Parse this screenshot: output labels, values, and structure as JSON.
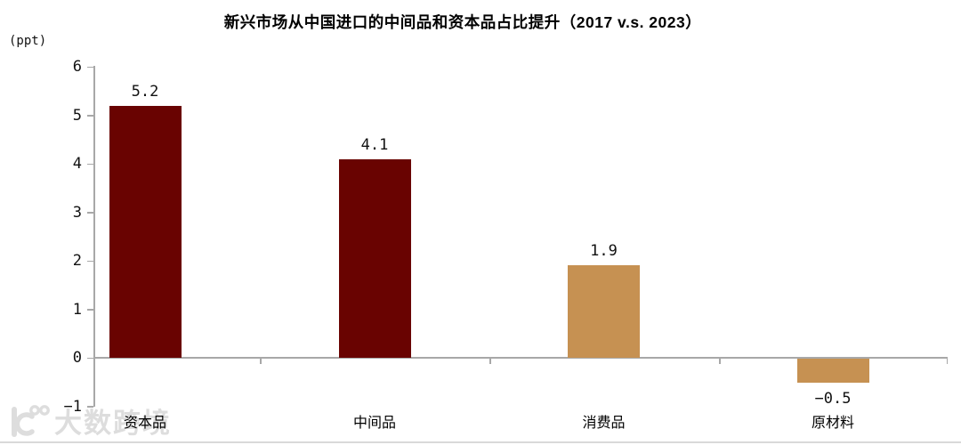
{
  "chart_data": {
    "type": "bar",
    "title": "新兴市场从中国进口的中间品和资本品占比提升（2017 v.s. 2023）",
    "xlabel": "",
    "ylabel": "(ppt)",
    "categories": [
      "资本品",
      "中间品",
      "消费品",
      "原材料"
    ],
    "values": [
      5.2,
      4.1,
      1.9,
      -0.5
    ],
    "value_labels": [
      "5.2",
      "4.1",
      "1.9",
      "−0.5"
    ],
    "ylim": [
      -1,
      6
    ],
    "yticks": [
      6,
      5,
      4,
      3,
      2,
      1,
      0,
      -1
    ],
    "ytick_labels": [
      "6",
      "5",
      "4",
      "3",
      "2",
      "1",
      "0",
      "−1"
    ],
    "grid": false,
    "legend_position": "none",
    "bar_colors": [
      "#690301",
      "#690301",
      "#C69152",
      "#C69152"
    ]
  },
  "watermark": {
    "text": "大数跨境",
    "logo": "10100-brand-logo"
  },
  "colors": {
    "bar_dark_red": "#690301",
    "bar_gold": "#C69152",
    "axis_gray": "#A8A8A8",
    "text": "#111111",
    "watermark_gray": "#DDDDDD",
    "background": "#FFFFFF"
  }
}
